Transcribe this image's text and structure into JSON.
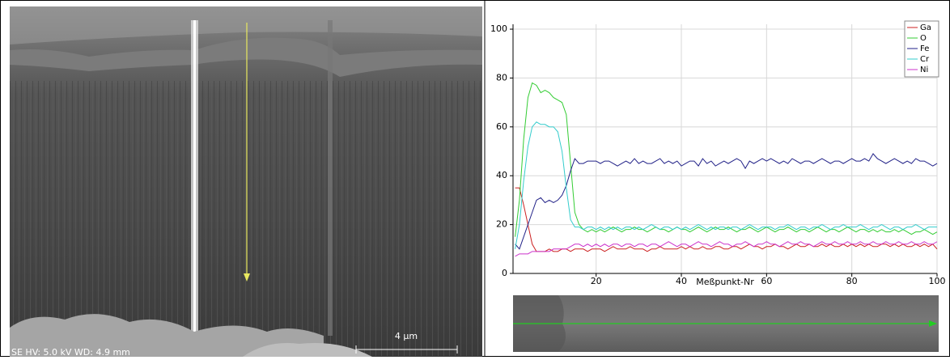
{
  "chart_data": {
    "type": "line",
    "x_label": "Meßpunkt-Nr",
    "x": [
      1,
      2,
      3,
      4,
      5,
      6,
      7,
      8,
      9,
      10,
      11,
      12,
      13,
      14,
      15,
      16,
      17,
      18,
      19,
      20,
      21,
      22,
      23,
      24,
      25,
      26,
      27,
      28,
      29,
      30,
      31,
      32,
      33,
      34,
      35,
      36,
      37,
      38,
      39,
      40,
      41,
      42,
      43,
      44,
      45,
      46,
      47,
      48,
      49,
      50,
      51,
      52,
      53,
      54,
      55,
      56,
      57,
      58,
      59,
      60,
      61,
      62,
      63,
      64,
      65,
      66,
      67,
      68,
      69,
      70,
      71,
      72,
      73,
      74,
      75,
      76,
      77,
      78,
      79,
      80,
      81,
      82,
      83,
      84,
      85,
      86,
      87,
      88,
      89,
      90,
      91,
      92,
      93,
      94,
      95,
      96,
      97,
      98,
      99,
      100
    ],
    "series": [
      {
        "name": "Ga",
        "color": "#cc2222",
        "values": [
          35,
          35,
          28,
          20,
          12,
          9,
          9,
          9,
          10,
          9,
          9,
          10,
          10,
          9,
          10,
          10,
          10,
          9,
          10,
          10,
          10,
          9,
          10,
          11,
          10,
          10,
          10,
          11,
          10,
          10,
          10,
          9,
          10,
          10,
          11,
          10,
          10,
          10,
          10,
          11,
          10,
          11,
          10,
          10,
          11,
          10,
          10,
          11,
          11,
          10,
          10,
          11,
          11,
          10,
          11,
          12,
          11,
          11,
          10,
          11,
          11,
          12,
          11,
          11,
          10,
          11,
          12,
          11,
          11,
          12,
          11,
          11,
          12,
          11,
          12,
          11,
          11,
          12,
          11,
          12,
          11,
          12,
          11,
          12,
          11,
          11,
          12,
          12,
          11,
          12,
          11,
          12,
          11,
          11,
          12,
          11,
          12,
          11,
          12,
          10
        ]
      },
      {
        "name": "O",
        "color": "#33cc33",
        "values": [
          15,
          30,
          55,
          72,
          78,
          77,
          74,
          75,
          74,
          72,
          71,
          70,
          65,
          45,
          25,
          20,
          18,
          17,
          18,
          17,
          18,
          17,
          18,
          19,
          18,
          17,
          18,
          18,
          19,
          18,
          18,
          17,
          18,
          19,
          18,
          18,
          17,
          18,
          19,
          18,
          18,
          17,
          18,
          19,
          18,
          17,
          18,
          19,
          18,
          18,
          19,
          18,
          17,
          18,
          18,
          19,
          18,
          17,
          18,
          19,
          18,
          17,
          18,
          18,
          19,
          18,
          17,
          18,
          18,
          17,
          18,
          19,
          18,
          17,
          18,
          18,
          17,
          18,
          19,
          18,
          17,
          18,
          18,
          17,
          18,
          17,
          18,
          17,
          17,
          18,
          17,
          18,
          17,
          16,
          17,
          17,
          18,
          17,
          16,
          17
        ]
      },
      {
        "name": "Fe",
        "color": "#222288",
        "values": [
          12,
          10,
          15,
          20,
          25,
          30,
          31,
          29,
          30,
          29,
          30,
          32,
          36,
          42,
          47,
          45,
          45,
          46,
          46,
          46,
          45,
          46,
          46,
          45,
          44,
          45,
          46,
          45,
          47,
          45,
          46,
          45,
          45,
          46,
          47,
          45,
          46,
          45,
          46,
          44,
          45,
          46,
          46,
          44,
          47,
          45,
          46,
          44,
          45,
          46,
          45,
          46,
          47,
          46,
          43,
          46,
          45,
          46,
          47,
          46,
          47,
          46,
          45,
          46,
          45,
          47,
          46,
          45,
          46,
          46,
          45,
          46,
          47,
          46,
          45,
          46,
          46,
          45,
          46,
          47,
          46,
          46,
          47,
          46,
          49,
          47,
          46,
          45,
          46,
          47,
          46,
          45,
          46,
          45,
          47,
          46,
          46,
          45,
          44,
          45
        ]
      },
      {
        "name": "Cr",
        "color": "#33cccc",
        "values": [
          10,
          20,
          38,
          52,
          60,
          62,
          61,
          61,
          60,
          60,
          58,
          50,
          35,
          22,
          19,
          19,
          18,
          19,
          19,
          18,
          19,
          18,
          19,
          18,
          19,
          18,
          19,
          19,
          18,
          19,
          18,
          19,
          20,
          19,
          18,
          19,
          19,
          18,
          19,
          18,
          19,
          18,
          19,
          20,
          19,
          18,
          19,
          18,
          19,
          19,
          18,
          19,
          19,
          18,
          19,
          20,
          19,
          18,
          19,
          19,
          19,
          18,
          19,
          19,
          20,
          19,
          18,
          19,
          19,
          18,
          19,
          19,
          20,
          19,
          18,
          19,
          19,
          20,
          19,
          19,
          19,
          20,
          19,
          18,
          19,
          19,
          20,
          19,
          18,
          19,
          19,
          18,
          19,
          19,
          20,
          19,
          18,
          19,
          19,
          19
        ]
      },
      {
        "name": "Ni",
        "color": "#cc33cc",
        "values": [
          7,
          8,
          8,
          8,
          9,
          9,
          9,
          9,
          9,
          10,
          10,
          10,
          10,
          11,
          12,
          12,
          11,
          12,
          11,
          12,
          11,
          12,
          11,
          12,
          12,
          11,
          12,
          12,
          11,
          12,
          12,
          11,
          12,
          12,
          11,
          12,
          13,
          12,
          11,
          12,
          12,
          11,
          12,
          13,
          12,
          12,
          11,
          12,
          13,
          12,
          12,
          11,
          12,
          12,
          13,
          12,
          11,
          12,
          12,
          13,
          12,
          12,
          11,
          12,
          13,
          12,
          12,
          13,
          12,
          12,
          11,
          12,
          13,
          12,
          12,
          13,
          12,
          12,
          13,
          12,
          12,
          13,
          12,
          12,
          13,
          12,
          12,
          13,
          12,
          12,
          13,
          12,
          12,
          13,
          12,
          12,
          13,
          12,
          12,
          13
        ]
      }
    ],
    "xlim": [
      0.5,
      100
    ],
    "xticks": [
      20,
      40,
      60,
      80,
      100
    ],
    "ylim": [
      0,
      102
    ],
    "yticks": [
      0,
      20,
      40,
      60,
      80,
      100
    ],
    "grid": true
  },
  "sem_image": {
    "info": "SE  HV: 5.0 kV  WD: 4.9 mm",
    "scale_bar": "4 µm"
  }
}
